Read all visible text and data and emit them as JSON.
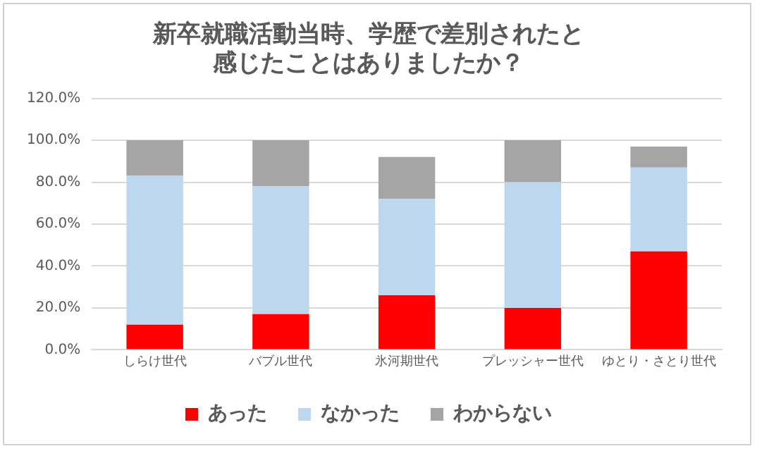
{
  "chart_data": {
    "type": "bar",
    "stacked": true,
    "title": [
      "新卒就職活動当時、学歴で差別されたと",
      "感じたことはありましたか？"
    ],
    "categories": [
      "しらけ世代",
      "バブル世代",
      "氷河期世代",
      "プレッシャー世代",
      "ゆとり・さとり世代"
    ],
    "series": [
      {
        "name": "あった",
        "color": "#ff0000",
        "values": [
          12,
          17,
          26,
          20,
          47
        ]
      },
      {
        "name": "なかった",
        "color": "#bdd7ee",
        "values": [
          71,
          61,
          46,
          60,
          40
        ]
      },
      {
        "name": "わからない",
        "color": "#a5a5a5",
        "values": [
          17,
          22,
          20,
          20,
          10
        ]
      }
    ],
    "ylim": [
      0,
      120
    ],
    "yticks": [
      {
        "value": 0,
        "label": "0.0%"
      },
      {
        "value": 20,
        "label": "20.0%"
      },
      {
        "value": 40,
        "label": "40.0%"
      },
      {
        "value": 60,
        "label": "60.0%"
      },
      {
        "value": 80,
        "label": "80.0%"
      },
      {
        "value": 100,
        "label": "100.0%"
      },
      {
        "value": 120,
        "label": "120.0%"
      }
    ],
    "grid": "y",
    "legend": "bottom"
  }
}
